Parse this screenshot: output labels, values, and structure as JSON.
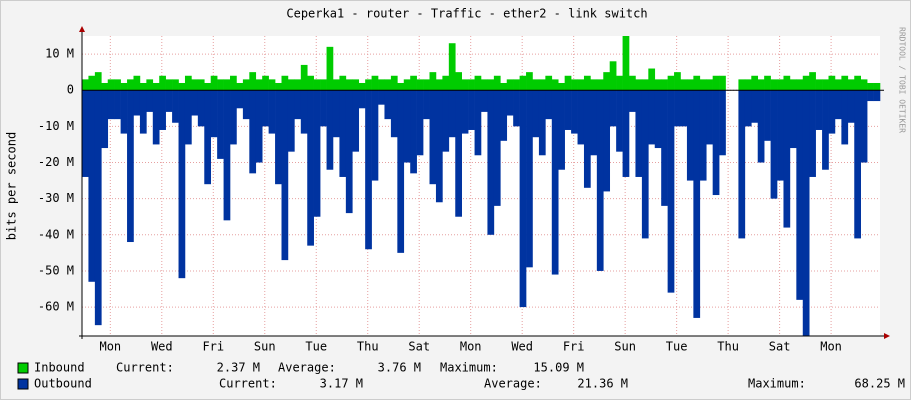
{
  "chart_data": {
    "type": "area",
    "title": "Ceperka1 - router - Traffic - ether2 - link switch",
    "y_label": "bits per second",
    "side_text": "RRDTOOL / TOBI OETIKER",
    "xlim": [
      0,
      31
    ],
    "xticks": [
      {
        "value": 1.1,
        "label": "Mon"
      },
      {
        "value": 3.1,
        "label": "Wed"
      },
      {
        "value": 5.1,
        "label": "Fri"
      },
      {
        "value": 7.1,
        "label": "Sun"
      },
      {
        "value": 9.1,
        "label": "Tue"
      },
      {
        "value": 11.1,
        "label": "Thu"
      },
      {
        "value": 13.1,
        "label": "Sat"
      },
      {
        "value": 15.1,
        "label": "Mon"
      },
      {
        "value": 17.1,
        "label": "Wed"
      },
      {
        "value": 19.1,
        "label": "Fri"
      },
      {
        "value": 21.1,
        "label": "Sun"
      },
      {
        "value": 23.1,
        "label": "Tue"
      },
      {
        "value": 25.1,
        "label": "Thu"
      },
      {
        "value": 27.1,
        "label": "Sat"
      },
      {
        "value": 29.1,
        "label": "Mon"
      }
    ],
    "ylim": [
      -68,
      15
    ],
    "yticks": [
      {
        "value": 10,
        "label": "10 M"
      },
      0,
      {
        "value": -10,
        "label": "-10 M"
      },
      {
        "value": -20,
        "label": "-20 M"
      },
      {
        "value": -30,
        "label": "-30 M"
      },
      {
        "value": -40,
        "label": "-40 M"
      },
      {
        "value": -50,
        "label": "-50 M"
      },
      {
        "value": -60,
        "label": "-60 M"
      }
    ],
    "grid": true,
    "x": [
      0,
      0.25,
      0.5,
      0.75,
      1,
      1.25,
      1.5,
      1.75,
      2,
      2.25,
      2.5,
      2.75,
      3,
      3.25,
      3.5,
      3.75,
      4,
      4.25,
      4.5,
      4.75,
      5,
      5.25,
      5.5,
      5.75,
      6,
      6.25,
      6.5,
      6.75,
      7,
      7.25,
      7.5,
      7.75,
      8,
      8.25,
      8.5,
      8.75,
      9,
      9.25,
      9.5,
      9.75,
      10,
      10.25,
      10.5,
      10.75,
      11,
      11.25,
      11.5,
      11.75,
      12,
      12.25,
      12.5,
      12.75,
      13,
      13.25,
      13.5,
      13.75,
      14,
      14.25,
      14.5,
      14.75,
      15,
      15.25,
      15.5,
      15.75,
      16,
      16.25,
      16.5,
      16.75,
      17,
      17.25,
      17.5,
      17.75,
      18,
      18.25,
      18.5,
      18.75,
      19,
      19.25,
      19.5,
      19.75,
      20,
      20.25,
      20.5,
      20.75,
      21,
      21.25,
      21.5,
      21.75,
      22,
      22.25,
      22.5,
      22.75,
      23,
      23.25,
      23.5,
      23.75,
      24,
      24.25,
      24.5,
      24.75,
      25,
      25.25,
      25.5,
      25.75,
      26,
      26.25,
      26.5,
      26.75,
      27,
      27.25,
      27.5,
      27.75,
      28,
      28.25,
      28.5,
      28.75,
      29,
      29.25,
      29.5,
      29.75,
      30,
      30.25,
      30.5,
      30.75
    ],
    "series": [
      {
        "name": "Inbound",
        "color": "#00cc00",
        "stats": [
          [
            "Current:",
            "2.37 M"
          ],
          [
            "Average:",
            "3.76 M"
          ],
          [
            "Maximum:",
            "15.09 M"
          ]
        ],
        "values": [
          3,
          4,
          5,
          2,
          3,
          3,
          2,
          3,
          4,
          2,
          3,
          2,
          4,
          3,
          3,
          2,
          4,
          3,
          3,
          2,
          4,
          3,
          3,
          4,
          2,
          3,
          5,
          3,
          4,
          3,
          2,
          4,
          3,
          3,
          7,
          4,
          3,
          3,
          12,
          3,
          4,
          3,
          3,
          2,
          3,
          4,
          3,
          3,
          4,
          2,
          3,
          4,
          3,
          3,
          5,
          3,
          4,
          13,
          5,
          3,
          3,
          4,
          3,
          3,
          4,
          2,
          3,
          3,
          4,
          5,
          3,
          3,
          4,
          3,
          2,
          4,
          3,
          3,
          4,
          3,
          3,
          5,
          8,
          4,
          15,
          4,
          3,
          3,
          6,
          3,
          3,
          4,
          5,
          3,
          3,
          4,
          3,
          3,
          4,
          4,
          null,
          null,
          3,
          3,
          4,
          3,
          4,
          3,
          3,
          4,
          3,
          3,
          4,
          5,
          3,
          3,
          4,
          3,
          4,
          3,
          4,
          3,
          2,
          2
        ]
      },
      {
        "name": "Outbound",
        "color": "#0033a0",
        "stats": [
          [
            "Current:",
            "3.17 M"
          ],
          [
            "Average:",
            "21.36 M"
          ],
          [
            "Maximum:",
            "68.25 M"
          ]
        ],
        "values": [
          -24,
          -53,
          -65,
          -16,
          -8,
          -8,
          -12,
          -42,
          -7,
          -12,
          -6,
          -15,
          -11,
          -6,
          -9,
          -52,
          -15,
          -7,
          -10,
          -26,
          -13,
          -19,
          -36,
          -15,
          -5,
          -8,
          -23,
          -20,
          -10,
          -12,
          -26,
          -47,
          -17,
          -8,
          -12,
          -43,
          -35,
          -10,
          -22,
          -13,
          -24,
          -34,
          -17,
          -5,
          -44,
          -25,
          -4,
          -8,
          -13,
          -45,
          -20,
          -23,
          -18,
          -8,
          -26,
          -31,
          -17,
          -13,
          -35,
          -12,
          -11,
          -18,
          -6,
          -40,
          -32,
          -14,
          -7,
          -10,
          -60,
          -49,
          -13,
          -18,
          -8,
          -51,
          -22,
          -11,
          -12,
          -15,
          -27,
          -18,
          -50,
          -28,
          -10,
          -17,
          -24,
          -6,
          -24,
          -41,
          -15,
          -16,
          -32,
          -56,
          -10,
          -10,
          -25,
          -63,
          -25,
          -15,
          -29,
          -18,
          null,
          null,
          -41,
          -10,
          -9,
          -20,
          -14,
          -30,
          -25,
          -38,
          -16,
          -58,
          -68,
          -24,
          -11,
          -22,
          -12,
          -8,
          -15,
          -9,
          -41,
          -20,
          -3,
          -3
        ]
      }
    ]
  }
}
